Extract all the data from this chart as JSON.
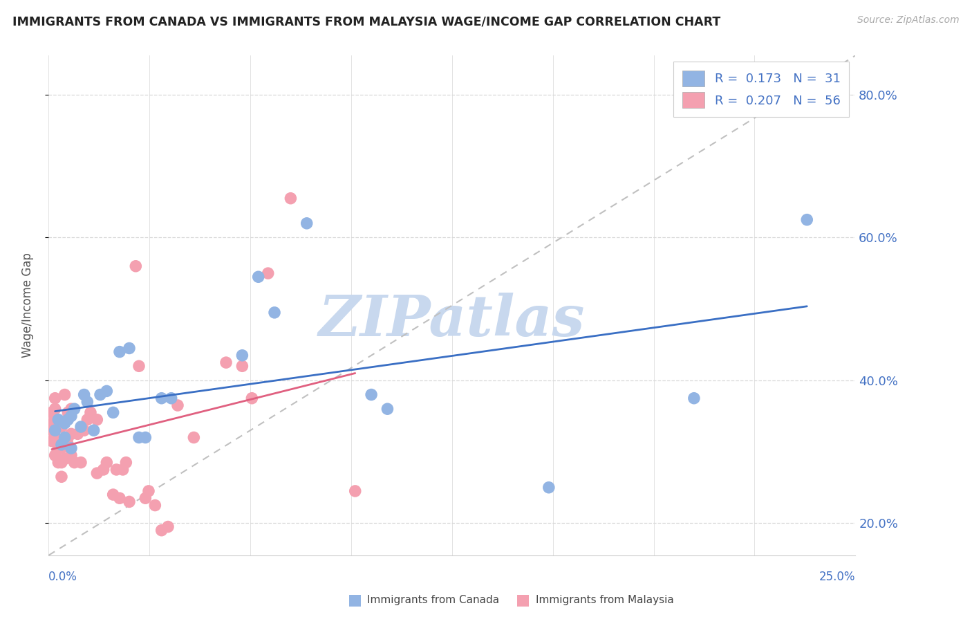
{
  "title": "IMMIGRANTS FROM CANADA VS IMMIGRANTS FROM MALAYSIA WAGE/INCOME GAP CORRELATION CHART",
  "source_text": "Source: ZipAtlas.com",
  "ylabel": "Wage/Income Gap",
  "yticks": [
    0.2,
    0.4,
    0.6,
    0.8
  ],
  "ytick_labels": [
    "20.0%",
    "40.0%",
    "60.0%",
    "80.0%"
  ],
  "xtick_labels": [
    "0.0%",
    "25.0%"
  ],
  "xlim": [
    0.0,
    0.25
  ],
  "ylim": [
    0.155,
    0.855
  ],
  "canada_color": "#92b4e3",
  "malaysia_color": "#f4a0b0",
  "canada_line_color": "#3a6fc4",
  "malaysia_line_color": "#e06080",
  "legend_text_color": "#4472c4",
  "legend_R_canada": "0.173",
  "legend_N_canada": "31",
  "legend_R_malaysia": "0.207",
  "legend_N_malaysia": "56",
  "watermark": "ZIPatlas",
  "watermark_color": "#c8d8ee",
  "diag_line_color": "#c0c0c0",
  "grid_color": "#d8d8d8",
  "title_color": "#222222",
  "source_color": "#aaaaaa",
  "axis_label_color": "#555555",
  "bottom_legend_color": "#444444",
  "canada_scatter_x": [
    0.002,
    0.003,
    0.004,
    0.005,
    0.005,
    0.006,
    0.007,
    0.007,
    0.008,
    0.01,
    0.011,
    0.012,
    0.014,
    0.016,
    0.018,
    0.02,
    0.022,
    0.025,
    0.028,
    0.03,
    0.035,
    0.038,
    0.06,
    0.065,
    0.07,
    0.08,
    0.1,
    0.105,
    0.155,
    0.2,
    0.235
  ],
  "canada_scatter_y": [
    0.33,
    0.345,
    0.31,
    0.32,
    0.34,
    0.345,
    0.305,
    0.35,
    0.36,
    0.335,
    0.38,
    0.37,
    0.33,
    0.38,
    0.385,
    0.355,
    0.44,
    0.445,
    0.32,
    0.32,
    0.375,
    0.375,
    0.435,
    0.545,
    0.495,
    0.62,
    0.38,
    0.36,
    0.25,
    0.375,
    0.625
  ],
  "malaysia_scatter_x": [
    0.001,
    0.001,
    0.001,
    0.001,
    0.002,
    0.002,
    0.002,
    0.002,
    0.002,
    0.003,
    0.003,
    0.003,
    0.004,
    0.004,
    0.004,
    0.004,
    0.005,
    0.005,
    0.005,
    0.006,
    0.006,
    0.006,
    0.007,
    0.007,
    0.007,
    0.008,
    0.009,
    0.01,
    0.011,
    0.012,
    0.013,
    0.015,
    0.015,
    0.017,
    0.018,
    0.02,
    0.021,
    0.022,
    0.023,
    0.024,
    0.025,
    0.027,
    0.028,
    0.03,
    0.031,
    0.033,
    0.035,
    0.037,
    0.04,
    0.045,
    0.055,
    0.06,
    0.063,
    0.068,
    0.075,
    0.095
  ],
  "malaysia_scatter_y": [
    0.315,
    0.33,
    0.34,
    0.355,
    0.295,
    0.32,
    0.335,
    0.36,
    0.375,
    0.285,
    0.305,
    0.34,
    0.265,
    0.285,
    0.305,
    0.335,
    0.29,
    0.31,
    0.38,
    0.31,
    0.32,
    0.355,
    0.295,
    0.325,
    0.36,
    0.285,
    0.325,
    0.285,
    0.33,
    0.345,
    0.355,
    0.27,
    0.345,
    0.275,
    0.285,
    0.24,
    0.275,
    0.235,
    0.275,
    0.285,
    0.23,
    0.56,
    0.42,
    0.235,
    0.245,
    0.225,
    0.19,
    0.195,
    0.365,
    0.32,
    0.425,
    0.42,
    0.375,
    0.55,
    0.655,
    0.245
  ]
}
